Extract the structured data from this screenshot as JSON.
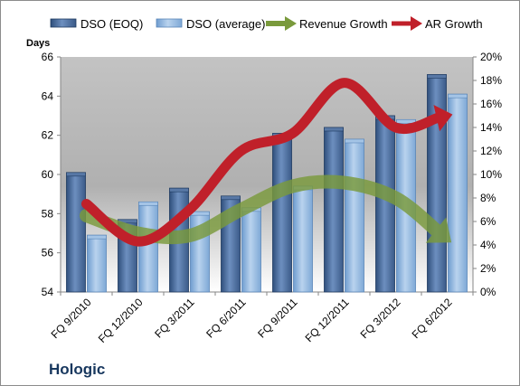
{
  "company": "Hologic",
  "chart_data": {
    "type": "bar",
    "categories": [
      "FQ 9/2010",
      "FQ 12/2010",
      "FQ 3/2011",
      "FQ 6/2011",
      "FQ 9/2011",
      "FQ 12/2011",
      "FQ 3/2012",
      "FQ 6/2012"
    ],
    "ylabel": "Days",
    "ylim": [
      54,
      66
    ],
    "yticks": [
      "54",
      "56",
      "58",
      "60",
      "62",
      "64",
      "66"
    ],
    "y2lim": [
      0,
      0.2
    ],
    "y2ticks": [
      "0%",
      "2%",
      "4%",
      "6%",
      "8%",
      "10%",
      "12%",
      "14%",
      "16%",
      "18%",
      "20%"
    ],
    "legend_position": "top",
    "series": [
      {
        "name": "DSO (EOQ)",
        "kind": "bar",
        "axis": "left",
        "color": "#4a6a98",
        "values": [
          60.1,
          57.7,
          59.3,
          58.9,
          62.1,
          62.4,
          63.0,
          65.1
        ]
      },
      {
        "name": "DSO (average)",
        "kind": "bar",
        "axis": "left",
        "color": "#8eb3dc",
        "values": [
          56.9,
          58.6,
          58.1,
          58.3,
          59.4,
          61.8,
          62.8,
          64.1
        ]
      },
      {
        "name": "Revenue Growth",
        "kind": "arrow",
        "axis": "right",
        "color": "#7a9a3c",
        "values": [
          0.065,
          0.05,
          0.048,
          0.07,
          0.09,
          0.093,
          0.08,
          0.045
        ]
      },
      {
        "name": "AR Growth",
        "kind": "arrow",
        "axis": "right",
        "color": "#c0202a",
        "values": [
          0.075,
          0.043,
          0.07,
          0.12,
          0.135,
          0.178,
          0.14,
          0.15
        ]
      }
    ]
  }
}
